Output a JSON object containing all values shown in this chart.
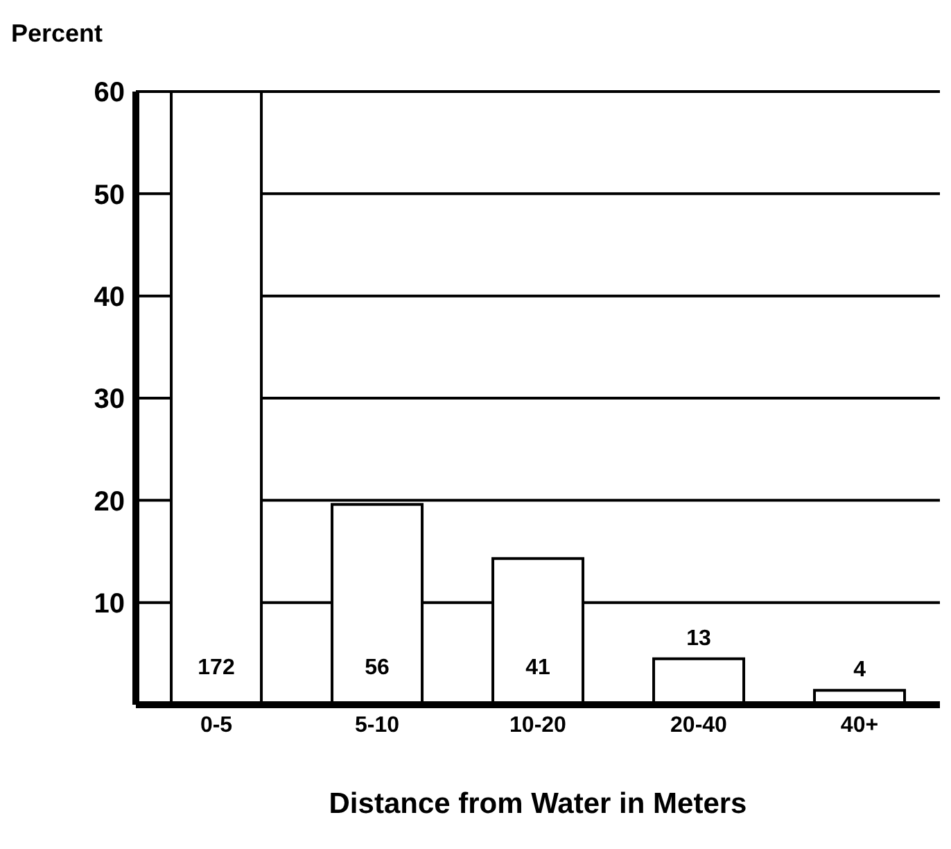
{
  "chart_data": {
    "type": "bar",
    "ylabel": "Percent",
    "xlabel": "Distance from Water in Meters",
    "categories": [
      "0-5",
      "5-10",
      "10-20",
      "20-40",
      "40+"
    ],
    "values": [
      60,
      19.6,
      14.3,
      4.5,
      1.4
    ],
    "annotations": [
      "172",
      "56",
      "41",
      "13",
      "4"
    ],
    "color": "#ffffff",
    "ylim": [
      0,
      60
    ],
    "yticks": [
      10,
      20,
      30,
      40,
      50,
      60
    ],
    "grid": "y"
  }
}
